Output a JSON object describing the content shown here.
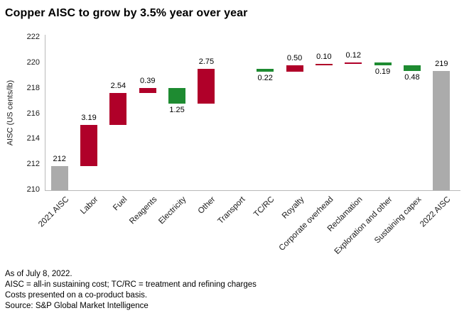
{
  "title": "Copper AISC to grow by 3.5% year over year",
  "footer": {
    "lines": [
      "As of July 8, 2022.",
      "AISC = all-in sustaining cost; TC/RC = treatment and refining charges",
      "Costs presented on a co-product basis.",
      "Source: S&P Global Market Intelligence"
    ]
  },
  "chart_data": {
    "type": "bar",
    "subtype": "waterfall",
    "title": "Copper AISC to grow by 3.5% year over year",
    "ylabel": "AISC (US cents/lb)",
    "ylim": [
      210,
      222
    ],
    "yticks": [
      "210",
      "212",
      "214",
      "216",
      "218",
      "220",
      "222"
    ],
    "grid": false,
    "legend": false,
    "categories": [
      "2021 AISC",
      "Labor",
      "Fuel",
      "Reagents",
      "Electricity",
      "Other",
      "Transport",
      "TC/RC",
      "Royalty",
      "Corporate overhead",
      "Reclamation",
      "Exploration and other",
      "Sustaining capex",
      "2022 AISC"
    ],
    "bars": [
      {
        "category": "2021 AISC",
        "kind": "total",
        "start": 210,
        "end": 211.92,
        "label": "212",
        "label_pos": "above"
      },
      {
        "category": "Labor",
        "kind": "increase",
        "start": 211.92,
        "end": 215.11,
        "label": "3.19",
        "label_pos": "above"
      },
      {
        "category": "Fuel",
        "kind": "increase",
        "start": 215.11,
        "end": 217.65,
        "label": "2.54",
        "label_pos": "above"
      },
      {
        "category": "Reagents",
        "kind": "increase",
        "start": 217.65,
        "end": 218.04,
        "label": "0.39",
        "label_pos": "above"
      },
      {
        "category": "Electricity",
        "kind": "decrease",
        "start": 218.04,
        "end": 216.79,
        "label": "1.25",
        "label_pos": "below"
      },
      {
        "category": "Other",
        "kind": "increase",
        "start": 216.79,
        "end": 219.54,
        "label": "2.75",
        "label_pos": "above"
      },
      {
        "category": "Transport",
        "kind": "none",
        "start": 219.54,
        "end": 219.54,
        "label": "",
        "label_pos": "none"
      },
      {
        "category": "TC/RC",
        "kind": "decrease",
        "start": 219.54,
        "end": 219.32,
        "label": "0.22",
        "label_pos": "below"
      },
      {
        "category": "Royalty",
        "kind": "increase",
        "start": 219.32,
        "end": 219.82,
        "label": "0.50",
        "label_pos": "above"
      },
      {
        "category": "Corporate overhead",
        "kind": "increase",
        "start": 219.82,
        "end": 219.92,
        "label": "0.10",
        "label_pos": "above"
      },
      {
        "category": "Reclamation",
        "kind": "increase",
        "start": 219.92,
        "end": 220.04,
        "label": "0.12",
        "label_pos": "above"
      },
      {
        "category": "Exploration and other",
        "kind": "decrease",
        "start": 220.04,
        "end": 219.85,
        "label": "0.19",
        "label_pos": "below"
      },
      {
        "category": "Sustaining capex",
        "kind": "decrease",
        "start": 219.85,
        "end": 219.37,
        "label": "0.48",
        "label_pos": "below"
      },
      {
        "category": "2022 AISC",
        "kind": "total",
        "start": 210,
        "end": 219.37,
        "label": "219",
        "label_pos": "above"
      }
    ],
    "colors": {
      "increase": "#b00029",
      "decrease": "#1e8b31",
      "total": "#ababab",
      "axis": "#b9b9b9",
      "text": "#000000"
    }
  }
}
